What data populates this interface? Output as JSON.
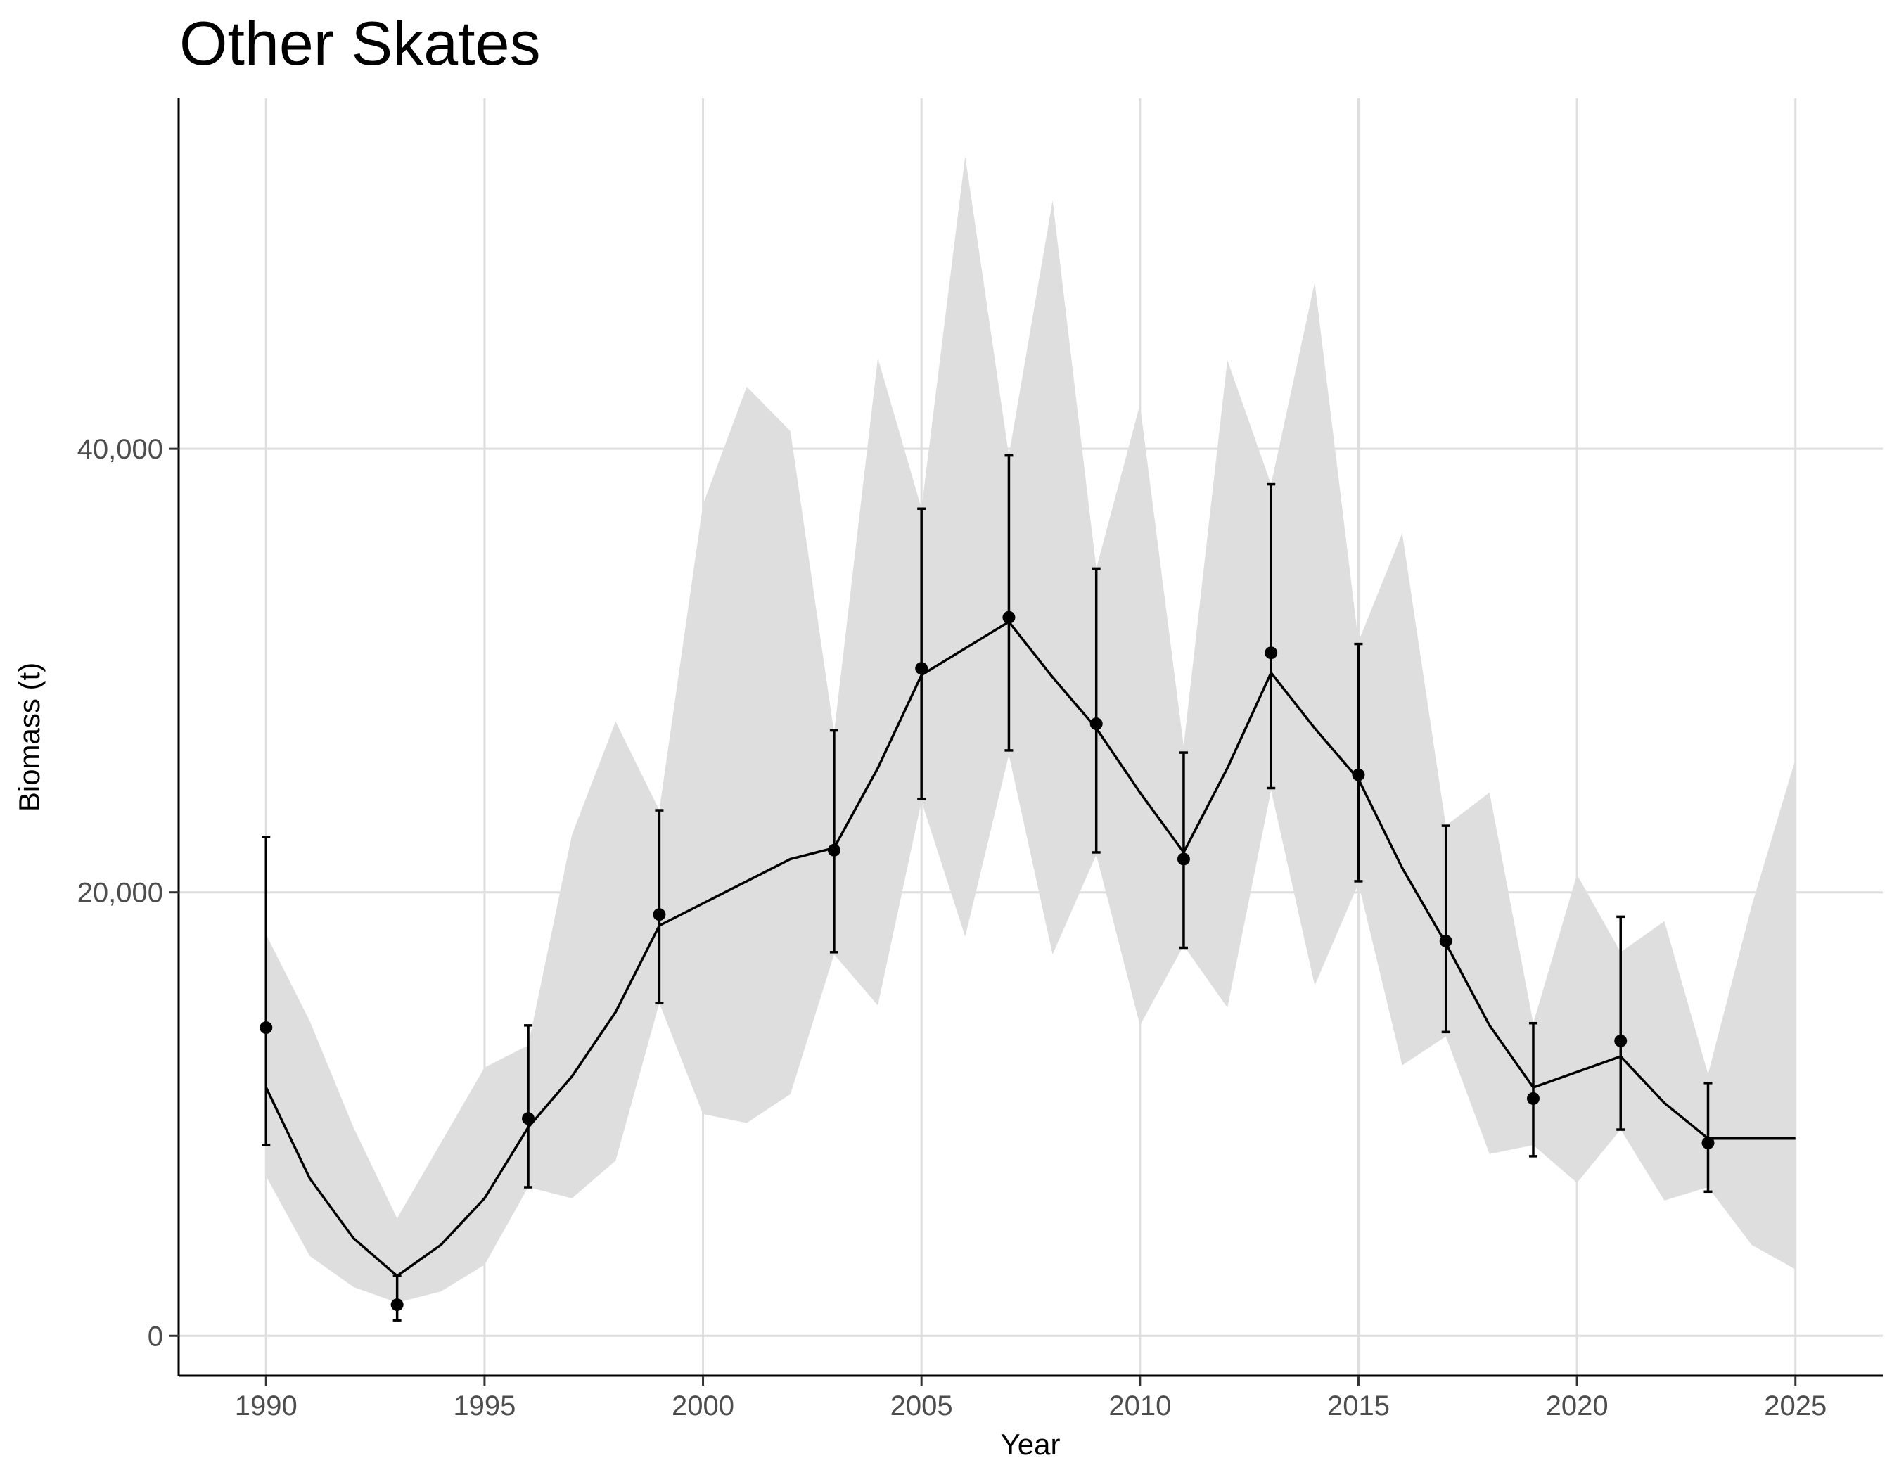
{
  "chart_data": {
    "type": "line",
    "title": "Other Skates",
    "xlabel": "Year",
    "ylabel": "Biomass (t)",
    "xlim": [
      1988,
      2027
    ],
    "ylim": [
      -1800,
      55800
    ],
    "x_ticks": [
      1990,
      1995,
      2000,
      2005,
      2010,
      2015,
      2020,
      2025
    ],
    "x_tick_labels": [
      "1990",
      "1995",
      "2000",
      "2005",
      "2010",
      "2015",
      "2020",
      "2025"
    ],
    "y_ticks": [
      0,
      20000,
      40000
    ],
    "y_tick_labels": [
      "0",
      "20,000",
      "40,000"
    ],
    "grid": true,
    "colors": {
      "band": "#dedede",
      "line": "#000000",
      "points": "#000000",
      "grid": "#dedede"
    },
    "series": [
      {
        "type": "ribbon",
        "x": [
          1990,
          1991,
          1992,
          1993,
          1994,
          1995,
          1996,
          1997,
          1998,
          1999,
          2000,
          2001,
          2002,
          2003,
          2004,
          2005,
          2006,
          2007,
          2008,
          2009,
          2010,
          2011,
          2012,
          2013,
          2014,
          2015,
          2016,
          2017,
          2018,
          2019,
          2020,
          2021,
          2022,
          2023,
          2024,
          2025
        ],
        "lower": [
          7200,
          3600,
          2200,
          1500,
          2000,
          3200,
          6700,
          6200,
          7900,
          15000,
          10000,
          9600,
          10900,
          17200,
          14900,
          24100,
          18000,
          26200,
          17200,
          21700,
          14000,
          17600,
          14800,
          24600,
          15800,
          20400,
          12200,
          13500,
          8200,
          8600,
          6900,
          9300,
          6100,
          6700,
          4100,
          3000
        ],
        "upper": [
          18100,
          14200,
          9400,
          5300,
          8700,
          12100,
          13100,
          22600,
          27700,
          23700,
          37500,
          42800,
          40800,
          27200,
          44100,
          37300,
          53200,
          39700,
          51200,
          34600,
          42000,
          26600,
          44000,
          38400,
          47500,
          31300,
          36200,
          23000,
          24500,
          14100,
          20800,
          17300,
          18700,
          11800,
          19400,
          26000
        ]
      },
      {
        "type": "line",
        "x": [
          1990,
          1991,
          1992,
          1993,
          1994,
          1995,
          1996,
          1997,
          1998,
          1999,
          2000,
          2001,
          2002,
          2003,
          2004,
          2005,
          2006,
          2007,
          2008,
          2009,
          2010,
          2011,
          2012,
          2013,
          2014,
          2015,
          2016,
          2017,
          2018,
          2019,
          2020,
          2021,
          2022,
          2023,
          2024,
          2025
        ],
        "values": [
          11200,
          7100,
          4400,
          2700,
          4100,
          6200,
          9400,
          11700,
          14600,
          18500,
          19500,
          20500,
          21500,
          22000,
          25600,
          29800,
          31000,
          32200,
          29700,
          27400,
          24500,
          21800,
          25600,
          29900,
          27400,
          25100,
          21100,
          17700,
          14000,
          11200,
          11900,
          12600,
          10500,
          8900,
          8900,
          8900
        ]
      },
      {
        "type": "points_errorbars",
        "x": [
          1990,
          1993,
          1996,
          1999,
          2003,
          2005,
          2007,
          2009,
          2011,
          2013,
          2015,
          2017,
          2019,
          2021,
          2023
        ],
        "values": [
          13900,
          1400,
          9800,
          19000,
          21900,
          30100,
          32400,
          27600,
          21500,
          30800,
          25300,
          17800,
          10700,
          13300,
          8700
        ],
        "lower": [
          8600,
          700,
          6700,
          15000,
          17300,
          24200,
          26400,
          21800,
          17500,
          24700,
          20500,
          13700,
          8100,
          9300,
          6500
        ],
        "upper": [
          22500,
          2700,
          14000,
          23700,
          27300,
          37300,
          39700,
          34600,
          26300,
          38400,
          31200,
          23000,
          14100,
          18900,
          11400
        ]
      }
    ]
  }
}
